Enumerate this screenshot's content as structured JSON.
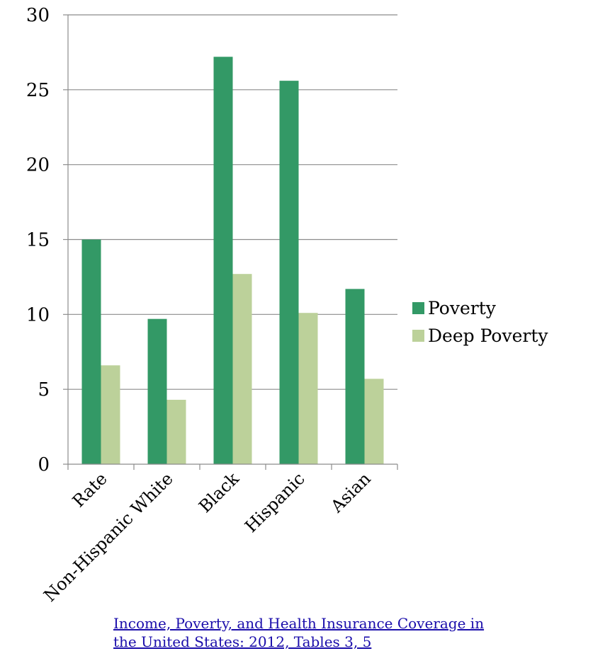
{
  "chart_data": {
    "type": "bar",
    "categories": [
      "Rate",
      "Non-Hispanic White",
      "Black",
      "Hispanic",
      "Asian"
    ],
    "series": [
      {
        "name": "Poverty",
        "values": [
          15.0,
          9.7,
          27.2,
          25.6,
          11.7
        ],
        "color": "#339966"
      },
      {
        "name": "Deep Poverty",
        "values": [
          6.6,
          4.3,
          12.7,
          10.1,
          5.7
        ],
        "color": "#bcd19a"
      }
    ],
    "ylim": [
      0,
      30
    ],
    "yticks": [
      0,
      5,
      10,
      15,
      20,
      25,
      30
    ],
    "grid": true,
    "legend": "right",
    "title": "",
    "xlabel": "",
    "ylabel": ""
  },
  "source_link": {
    "line1": "Income, Poverty, and Health Insurance Coverage in",
    "line2": "the United States: 2012, Tables 3, 5"
  }
}
